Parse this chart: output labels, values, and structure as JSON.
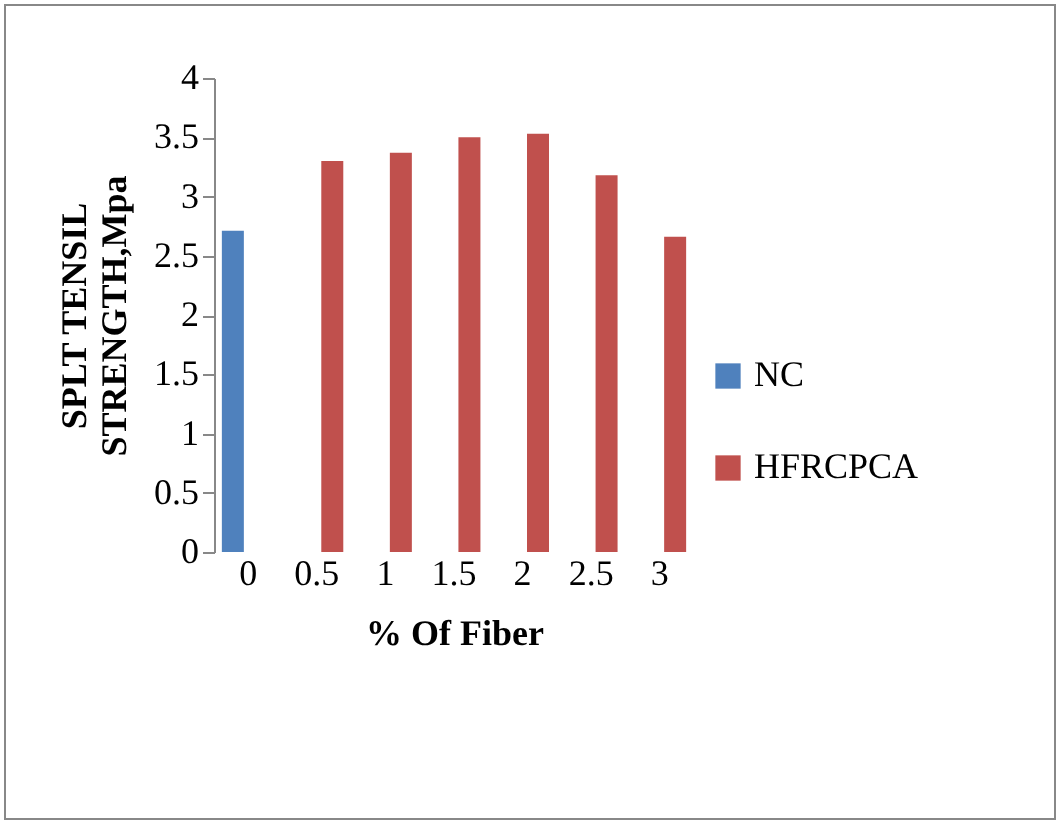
{
  "chart_data": {
    "type": "bar",
    "xlabel": "% Of Fiber",
    "ylabel": "SPLT TENSIL STRENGTH,Mpa",
    "categories": [
      "0",
      "0.5",
      "1",
      "1.5",
      "2",
      "2.5",
      "3"
    ],
    "series": [
      {
        "name": "NC",
        "color": "#4f81bd",
        "values": [
          2.71,
          null,
          null,
          null,
          null,
          null,
          null
        ]
      },
      {
        "name": "HFRCPCA",
        "color": "#c0504d",
        "values": [
          null,
          3.3,
          3.37,
          3.5,
          3.53,
          3.18,
          2.66
        ]
      }
    ],
    "ylim": [
      0,
      4
    ],
    "yticks": [
      0,
      0.5,
      1,
      1.5,
      2,
      2.5,
      3,
      3.5,
      4
    ],
    "grid": false,
    "legend": "right"
  }
}
